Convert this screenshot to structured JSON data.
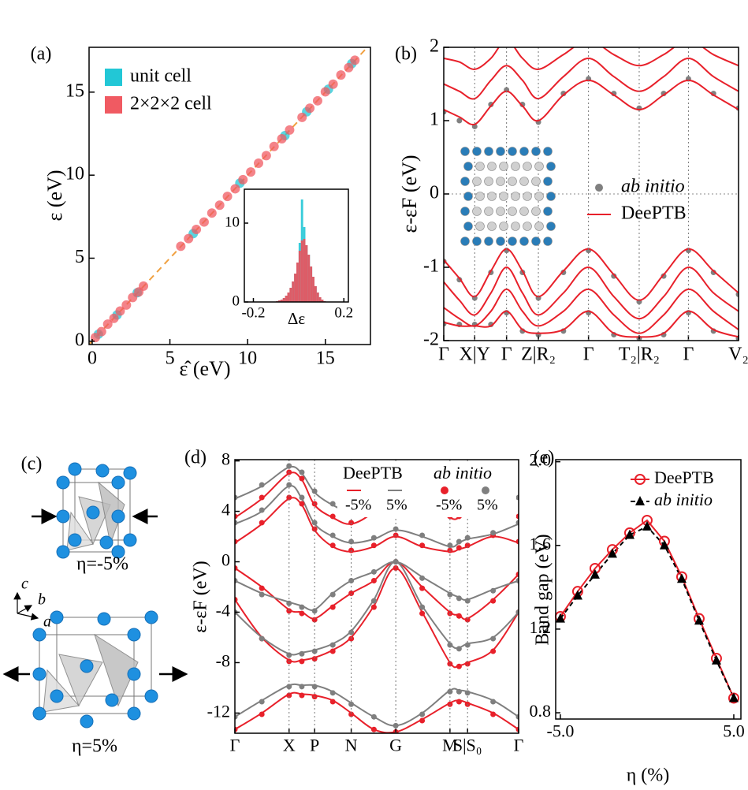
{
  "chart_data": [
    {
      "type": "scatter",
      "label": "(a)",
      "xlabel": "ε̂ (eV)",
      "ylabel": "ε (eV)",
      "xlim": [
        -0.2,
        17.9
      ],
      "ylim": [
        -0.2,
        17.7
      ],
      "xticks": [
        0,
        5,
        10,
        15
      ],
      "yticks": [
        0,
        5,
        10,
        15
      ],
      "diagonal": {
        "color": "#f0a040",
        "style": "dashed"
      },
      "legend": "upper left",
      "series": [
        {
          "name": "unit cell",
          "color": "#22c7d6",
          "x": [
            0.4,
            1.6,
            2.9,
            6.5,
            9.5,
            12.4,
            13.8,
            15.2,
            16.7
          ],
          "values": [
            0.42,
            1.58,
            2.92,
            6.48,
            9.52,
            12.38,
            13.82,
            15.18,
            16.72
          ]
        },
        {
          "name": "2×2×2 cell",
          "color": "#f05a62",
          "x": [
            0.2,
            0.6,
            1.0,
            1.4,
            1.8,
            2.2,
            2.6,
            3.0,
            3.3,
            5.7,
            6.2,
            6.7,
            7.2,
            7.7,
            8.2,
            8.7,
            9.2,
            9.7,
            10.2,
            10.7,
            11.2,
            11.7,
            12.2,
            12.7,
            13.5,
            14.0,
            14.5,
            15.0,
            15.5,
            16.0,
            16.5,
            16.9
          ],
          "values": [
            0.22,
            0.58,
            1.03,
            1.38,
            1.82,
            2.18,
            2.63,
            2.97,
            3.32,
            5.72,
            6.18,
            6.73,
            7.18,
            7.72,
            8.19,
            8.72,
            9.18,
            9.73,
            10.19,
            10.72,
            11.18,
            11.73,
            12.19,
            12.72,
            13.48,
            14.03,
            14.48,
            15.02,
            15.48,
            16.03,
            16.48,
            16.92
          ]
        }
      ]
    },
    {
      "type": "histogram",
      "xlabel": "Δε",
      "xlim": [
        -0.24,
        0.22
      ],
      "ylim": [
        0,
        14.3
      ],
      "xticks": [
        -0.2,
        0.2
      ],
      "yticks": [
        0,
        10
      ],
      "bins": [
        -0.1,
        -0.09,
        -0.08,
        -0.07,
        -0.06,
        -0.05,
        -0.04,
        -0.03,
        -0.02,
        -0.01,
        0,
        0.01,
        0.02,
        0.03,
        0.04,
        0.05,
        0.06,
        0.07,
        0.08,
        0.09,
        0.1,
        0.11,
        0.12
      ],
      "series": [
        {
          "color": "#22c7d6",
          "values": [
            0.1,
            0.2,
            0.3,
            0.5,
            0.8,
            1.2,
            1.8,
            2.6,
            3.6,
            5,
            7.5,
            13,
            9.5,
            7.2,
            6,
            4.5,
            3.2,
            2,
            1.2,
            0.6,
            0.3,
            0.1
          ]
        },
        {
          "color": "#f0505a",
          "values": [
            0.1,
            0.2,
            0.3,
            0.5,
            0.8,
            1.2,
            1.8,
            2.6,
            3.6,
            5,
            6.5,
            7.8,
            8,
            7.2,
            6,
            4.5,
            3.2,
            2,
            1.2,
            0.6,
            0.3,
            0.1
          ]
        }
      ]
    },
    {
      "type": "band",
      "label": "(b)",
      "ylabel": "ε-εF (eV)",
      "xlim": [
        0,
        1
      ],
      "ylim": [
        -2,
        2
      ],
      "yticks": [
        -2,
        -1,
        0,
        1,
        2
      ],
      "zero_line": true,
      "legend": "center right",
      "xticks": [
        {
          "value": 0,
          "label": "Γ"
        },
        {
          "value": 0.105,
          "label": "X|Y"
        },
        {
          "value": 0.213,
          "label": "Γ"
        },
        {
          "value": 0.321,
          "label": "Z|R₂"
        },
        {
          "value": 0.491,
          "label": "Γ"
        },
        {
          "value": 0.663,
          "label": "T₂|R₂"
        },
        {
          "value": 0.83,
          "label": "Γ"
        },
        {
          "value": 1,
          "label": "V₂"
        }
      ],
      "x": [
        0,
        0.053,
        0.105,
        0.16,
        0.213,
        0.267,
        0.321,
        0.406,
        0.491,
        0.577,
        0.663,
        0.746,
        0.83,
        0.915,
        1.0
      ],
      "series": [
        {
          "name": "ab initio",
          "color": "#808080",
          "style": "dots",
          "font_style": "italic",
          "bands": [
            [
              1.12,
              1.0,
              0.92,
              1.22,
              1.42,
              1.22,
              0.98,
              1.37,
              1.57,
              1.37,
              1.17,
              1.37,
              1.57,
              1.37,
              1.17
            ],
            [
              -0.92,
              -1.17,
              -1.42,
              -1.07,
              -0.77,
              -1.07,
              -1.42,
              -1.07,
              -0.77,
              -1.12,
              -1.47,
              -1.12,
              -0.77,
              -1.07,
              -1.37
            ],
            [
              -1.77,
              -1.78,
              -1.78,
              -1.78,
              -1.62,
              -1.87,
              -1.92,
              -1.87,
              -1.62,
              -1.92,
              -1.97,
              -1.92,
              -1.62,
              -1.87,
              -1.97
            ]
          ]
        },
        {
          "name": "DeePTB",
          "color": "#e8202a",
          "style": "line",
          "bands": [
            [
              1.15,
              1.05,
              0.95,
              1.2,
              1.4,
              1.2,
              1.0,
              1.35,
              1.55,
              1.35,
              1.15,
              1.35,
              1.55,
              1.35,
              1.15
            ],
            [
              1.5,
              1.4,
              1.3,
              1.55,
              1.75,
              1.55,
              1.3,
              1.6,
              1.85,
              1.6,
              1.4,
              1.6,
              1.85,
              1.6,
              1.4
            ],
            [
              1.85,
              1.8,
              1.7,
              1.85,
              2.1,
              1.85,
              1.7,
              1.9,
              2.1,
              1.9,
              1.75,
              1.9,
              2.1,
              1.9,
              1.75
            ],
            [
              -0.9,
              -1.15,
              -1.4,
              -1.05,
              -0.75,
              -1.05,
              -1.4,
              -1.05,
              -0.75,
              -1.1,
              -1.45,
              -1.1,
              -0.75,
              -1.05,
              -1.35
            ],
            [
              -1.2,
              -1.45,
              -1.65,
              -1.35,
              -1.0,
              -1.35,
              -1.65,
              -1.35,
              -1.0,
              -1.4,
              -1.7,
              -1.4,
              -1.0,
              -1.35,
              -1.6
            ],
            [
              -1.55,
              -1.7,
              -1.8,
              -1.6,
              -1.3,
              -1.6,
              -1.8,
              -1.6,
              -1.3,
              -1.65,
              -1.9,
              -1.65,
              -1.3,
              -1.6,
              -1.85
            ],
            [
              -1.75,
              -1.8,
              -1.8,
              -1.8,
              -1.6,
              -1.85,
              -1.9,
              -1.85,
              -1.6,
              -1.9,
              -1.95,
              -1.9,
              -1.6,
              -1.85,
              -1.95
            ]
          ]
        }
      ]
    },
    {
      "type": "band",
      "label": "(d)",
      "ylabel": "ε-εF (eV)",
      "xlim": [
        0,
        1
      ],
      "ylim": [
        -13.6,
        8.1
      ],
      "yticks": [
        8,
        4,
        0,
        -4,
        -8,
        -12
      ],
      "legend": "upper right",
      "xticks": [
        {
          "value": 0,
          "label": "Γ"
        },
        {
          "value": 0.191,
          "label": "X"
        },
        {
          "value": 0.281,
          "label": "P"
        },
        {
          "value": 0.41,
          "label": "N"
        },
        {
          "value": 0.567,
          "label": "G"
        },
        {
          "value": 0.758,
          "label": "M"
        },
        {
          "value": 0.82,
          "label": "S|S₀"
        },
        {
          "value": 1,
          "label": "Γ"
        }
      ],
      "x": [
        0,
        0.095,
        0.191,
        0.236,
        0.281,
        0.345,
        0.41,
        0.49,
        0.567,
        0.66,
        0.758,
        0.79,
        0.82,
        0.91,
        1
      ],
      "groups": [
        {
          "name": "DeePTB",
          "style": "line",
          "series": [
            {
              "name": "-5%",
              "color": "#e8202a",
              "bands": [
                [
                  -0.5,
                  -2,
                  -3.8,
                  -4,
                  -4.5,
                  -3.5,
                  -2.5,
                  -1.5,
                  0,
                  -2,
                  -4,
                  -4.2,
                  -4.5,
                  -3,
                  -1
                ],
                [
                  -3,
                  -6,
                  -7.8,
                  -7.8,
                  -7.6,
                  -7,
                  -6,
                  -3.5,
                  -0.5,
                  -4,
                  -8,
                  -8.2,
                  -8,
                  -7,
                  -4
                ],
                [
                  -13.3,
                  -12,
                  -10.5,
                  -10.5,
                  -10.6,
                  -11,
                  -12,
                  -13.3,
                  -13.5,
                  -12.5,
                  -11.2,
                  -11,
                  -11.2,
                  -12,
                  -13.3
                ],
                [
                  1.5,
                  3,
                  5,
                  4.5,
                  2.5,
                  1.2,
                  0.8,
                  1.2,
                  2,
                  1.2,
                  0.8,
                  1,
                  1.2,
                  2,
                  1.5
                ],
                [
                  3.5,
                  5,
                  7,
                  6.5,
                  4.5,
                  3.5,
                  3,
                  4,
                  6,
                  5,
                  3.5,
                  3.5,
                  4,
                  4.5,
                  3.5
                ]
              ]
            },
            {
              "name": "5%",
              "color": "#7f7f7f",
              "bands": [
                [
                  -1.5,
                  -2.5,
                  -3.2,
                  -3.5,
                  -3.8,
                  -2.5,
                  -1.5,
                  -0.8,
                  0,
                  -1.2,
                  -2.5,
                  -2.8,
                  -3,
                  -2.2,
                  -1.5
                ],
                [
                  -4,
                  -6,
                  -7.3,
                  -7.2,
                  -7,
                  -6.5,
                  -5.5,
                  -3,
                  0,
                  -3.5,
                  -6.5,
                  -6.8,
                  -6.5,
                  -6,
                  -4
                ],
                [
                  -12.3,
                  -11,
                  -9.8,
                  -9.8,
                  -9.8,
                  -10.3,
                  -11.2,
                  -12.3,
                  -13,
                  -12,
                  -10.2,
                  -10.2,
                  -10.3,
                  -11,
                  -12.3
                ],
                [
                  3,
                  4,
                  6,
                  5,
                  3,
                  2,
                  1.5,
                  1.8,
                  2.5,
                  2.0,
                  1.2,
                  1.5,
                  1.8,
                  2.2,
                  3
                ],
                [
                  5,
                  6,
                  7.5,
                  7,
                  5.5,
                  4.5,
                  4,
                  5,
                  6.5,
                  5.5,
                  4,
                  4,
                  4.5,
                  5,
                  5
                ]
              ]
            }
          ]
        },
        {
          "name": "ab initio",
          "style": "dots",
          "font_style": "italic",
          "series": [
            {
              "name": "-5%",
              "color": "#e8202a",
              "bands": [
                [
                  -0.5,
                  -2.1,
                  -3.9,
                  -4.1,
                  -4.6,
                  -3.6,
                  -2.5,
                  -1.5,
                  0,
                  -2.1,
                  -4.1,
                  -4.3,
                  -4.6,
                  -3.1,
                  -1
                ],
                [
                  -3,
                  -6.1,
                  -7.9,
                  -7.9,
                  -7.7,
                  -7.1,
                  -6.1,
                  -3.6,
                  -0.5,
                  -4.1,
                  -8.1,
                  -8.3,
                  -8.1,
                  -7.1,
                  -4
                ],
                [
                  -13.3,
                  -12.1,
                  -10.6,
                  -10.6,
                  -10.7,
                  -11.1,
                  -12.1,
                  -13.3,
                  -13.5,
                  -12.6,
                  -11.3,
                  -11.1,
                  -11.3,
                  -12.1,
                  -13.3
                ],
                [
                  1.6,
                  3.1,
                  5.1,
                  4.6,
                  2.6,
                  1.3,
                  0.9,
                  1.3,
                  2.1,
                  1.3,
                  0.9,
                  1.1,
                  1.3,
                  2.1,
                  1.6
                ],
                [
                  3.6,
                  5.1,
                  7.1,
                  6.6,
                  4.6,
                  3.6,
                  3.1,
                  4.1,
                  6.1,
                  5.1,
                  3.6,
                  3.6,
                  4.1,
                  4.6,
                  3.6
                ]
              ]
            },
            {
              "name": "5%",
              "color": "#7f7f7f",
              "bands": [
                [
                  -1.5,
                  -2.6,
                  -3.3,
                  -3.6,
                  -3.9,
                  -2.6,
                  -1.5,
                  -0.8,
                  0,
                  -1.3,
                  -2.6,
                  -2.9,
                  -3.1,
                  -2.3,
                  -1.5
                ],
                [
                  -4,
                  -6.1,
                  -7.4,
                  -7.3,
                  -7.1,
                  -6.6,
                  -5.6,
                  -3.1,
                  0,
                  -3.6,
                  -6.6,
                  -6.9,
                  -6.6,
                  -6.1,
                  -4
                ],
                [
                  -12.3,
                  -11.1,
                  -9.9,
                  -9.9,
                  -9.9,
                  -10.4,
                  -11.3,
                  -12.3,
                  -13,
                  -12.1,
                  -10.3,
                  -10.3,
                  -10.4,
                  -11.1,
                  -12.3
                ],
                [
                  3.1,
                  4.1,
                  6.1,
                  5.1,
                  3.1,
                  2.1,
                  1.6,
                  1.9,
                  2.6,
                  2.1,
                  1.3,
                  1.6,
                  1.9,
                  2.3,
                  3.1
                ],
                [
                  5.1,
                  6.1,
                  7.6,
                  7.1,
                  5.6,
                  4.6,
                  4.1,
                  5.1,
                  6.6,
                  5.6,
                  4.1,
                  4.1,
                  4.6,
                  5.1,
                  5.1
                ]
              ]
            }
          ]
        }
      ]
    },
    {
      "type": "line",
      "label": "(e)",
      "xlabel": "η (%)",
      "ylabel": "Band gap (eV)",
      "xlim": [
        -5.27,
        5.41
      ],
      "ylim": [
        0.77,
        2.01
      ],
      "xticks": [
        {
          "value": -5,
          "label": "-5.0"
        },
        {
          "value": 5,
          "label": "5.0"
        }
      ],
      "yticks": [
        0.8,
        1.2,
        1.6,
        {
          "value": 2,
          "label": "2.0"
        }
      ],
      "legend": "upper right",
      "x": [
        -5,
        -4,
        -3,
        -2,
        -1,
        0,
        1,
        2,
        3,
        4,
        5
      ],
      "series": [
        {
          "name": "DeePTB",
          "color": "#e8202a",
          "marker": "open-circle",
          "linestyle": "solid",
          "values": [
            1.26,
            1.38,
            1.49,
            1.58,
            1.66,
            1.72,
            1.62,
            1.45,
            1.25,
            1.06,
            0.87
          ]
        },
        {
          "name": "ab initio",
          "color": "#000000",
          "marker": "triangle",
          "linestyle": "dashed",
          "font_style": "italic",
          "values": [
            1.25,
            1.36,
            1.46,
            1.56,
            1.65,
            1.69,
            1.6,
            1.44,
            1.24,
            1.05,
            0.87
          ]
        }
      ]
    }
  ],
  "diagram": {
    "label": "(c)",
    "structures": [
      {
        "caption": "η=-5%"
      },
      {
        "caption": "η=5%"
      }
    ],
    "axes": [
      "c",
      "b",
      "a"
    ]
  }
}
